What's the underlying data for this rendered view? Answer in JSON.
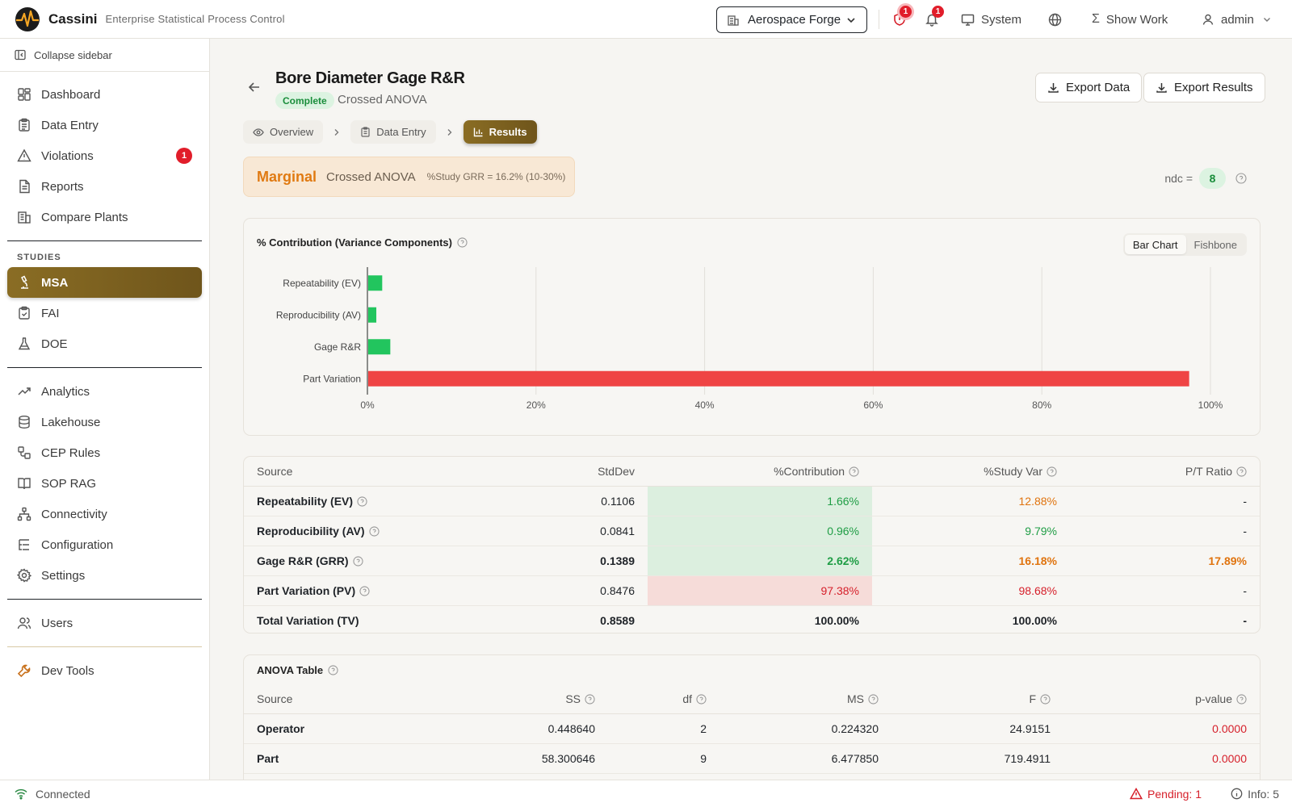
{
  "app": {
    "name": "Cassini",
    "subtitle": "Enterprise Statistical Process Control"
  },
  "header": {
    "plant": "Aerospace Forge",
    "alerts_badge": "1",
    "notifications_badge": "1",
    "system_label": "System",
    "show_work_label": "Show Work",
    "user_label": "admin"
  },
  "sidebar": {
    "collapse_label": "Collapse sidebar",
    "main_items": [
      {
        "label": "Dashboard",
        "icon": "dashboard-icon"
      },
      {
        "label": "Data Entry",
        "icon": "clipboard-icon"
      },
      {
        "label": "Violations",
        "icon": "warning-icon",
        "badge": "1"
      },
      {
        "label": "Reports",
        "icon": "report-icon"
      },
      {
        "label": "Compare Plants",
        "icon": "building-icon"
      }
    ],
    "studies_label": "STUDIES",
    "study_items": [
      {
        "label": "MSA",
        "icon": "microscope-icon",
        "active": true
      },
      {
        "label": "FAI",
        "icon": "clipboard-check-icon"
      },
      {
        "label": "DOE",
        "icon": "flask-icon"
      }
    ],
    "tool_items": [
      {
        "label": "Analytics",
        "icon": "trending-icon"
      },
      {
        "label": "Lakehouse",
        "icon": "database-icon"
      },
      {
        "label": "CEP Rules",
        "icon": "workflow-icon"
      },
      {
        "label": "SOP RAG",
        "icon": "book-icon"
      },
      {
        "label": "Connectivity",
        "icon": "network-icon"
      },
      {
        "label": "Configuration",
        "icon": "list-tree-icon"
      },
      {
        "label": "Settings",
        "icon": "gear-icon"
      }
    ],
    "admin_items": [
      {
        "label": "Users",
        "icon": "users-icon"
      }
    ],
    "dev_items": [
      {
        "label": "Dev Tools",
        "icon": "wrench-icon"
      }
    ]
  },
  "study": {
    "title": "Bore Diameter Gage R&R",
    "status": "Complete",
    "method": "Crossed ANOVA",
    "export_data_label": "Export Data",
    "export_results_label": "Export Results",
    "steps": [
      {
        "label": "Overview",
        "icon": "eye-icon"
      },
      {
        "label": "Data Entry",
        "icon": "clipboard-icon"
      },
      {
        "label": "Results",
        "icon": "bar-chart-icon",
        "active": true
      }
    ]
  },
  "verdict": {
    "word": "Marginal",
    "method": "Crossed ANOVA",
    "detail": "%Study GRR = 16.2% (10-30%)",
    "ndc_label": "ndc =",
    "ndc_value": "8"
  },
  "chart_data": {
    "type": "bar",
    "orientation": "horizontal",
    "title": "% Contribution (Variance Components)",
    "toggle": [
      "Bar Chart",
      "Fishbone"
    ],
    "toggle_active": "Bar Chart",
    "categories": [
      "Repeatability (EV)",
      "Reproducibility (AV)",
      "Gage R&R",
      "Part Variation"
    ],
    "values": [
      1.66,
      0.96,
      2.62,
      97.38
    ],
    "colors": [
      "#22c55e",
      "#22c55e",
      "#22c55e",
      "#ef4444"
    ],
    "xlim": [
      0,
      100
    ],
    "xticks": [
      "0%",
      "20%",
      "40%",
      "60%",
      "80%",
      "100%"
    ],
    "grid": true
  },
  "variance_table": {
    "columns": [
      "Source",
      "StdDev",
      "%Contribution",
      "%Study Var",
      "P/T Ratio"
    ],
    "rows": [
      {
        "source": "Repeatability (EV)",
        "stddev": "0.1106",
        "contribution": "1.66%",
        "study_var": "12.88%",
        "pt_ratio": "-"
      },
      {
        "source": "Reproducibility (AV)",
        "stddev": "0.0841",
        "contribution": "0.96%",
        "study_var": "9.79%",
        "pt_ratio": "-"
      },
      {
        "source": "Gage R&R (GRR)",
        "stddev": "0.1389",
        "contribution": "2.62%",
        "study_var": "16.18%",
        "pt_ratio": "17.89%"
      },
      {
        "source": "Part Variation (PV)",
        "stddev": "0.8476",
        "contribution": "97.38%",
        "study_var": "98.68%",
        "pt_ratio": "-"
      },
      {
        "source": "Total Variation (TV)",
        "stddev": "0.8589",
        "contribution": "100.00%",
        "study_var": "100.00%",
        "pt_ratio": "-"
      }
    ]
  },
  "anova": {
    "title": "ANOVA Table",
    "columns": [
      "Source",
      "SS",
      "df",
      "MS",
      "F",
      "p-value"
    ],
    "rows": [
      {
        "source": "Operator",
        "ss": "0.448640",
        "df": "2",
        "ms": "0.224320",
        "f": "24.9151",
        "p": "0.0000"
      },
      {
        "source": "Part",
        "ss": "58.300646",
        "df": "9",
        "ms": "6.477850",
        "f": "719.4911",
        "p": "0.0000"
      }
    ]
  },
  "footer": {
    "connection": "Connected",
    "pending": "Pending: 1",
    "info": "Info: 5"
  },
  "theme": {
    "accent": "#7a5f1f",
    "good": "#22c55e",
    "bad": "#ef4444",
    "warn": "#e07a12"
  }
}
